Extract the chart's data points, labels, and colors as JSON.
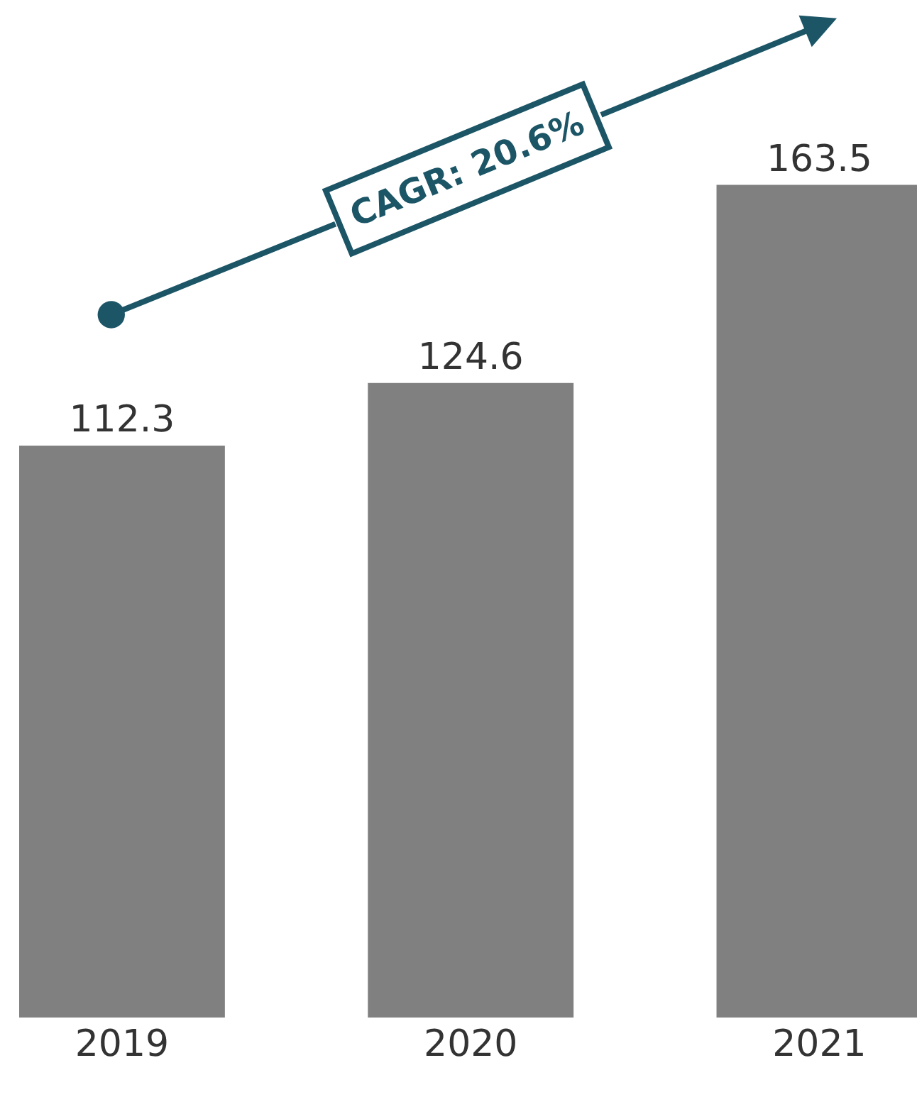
{
  "chart_data": {
    "type": "bar",
    "categories": [
      "2019",
      "2020",
      "2021"
    ],
    "values": [
      112.3,
      124.6,
      163.5
    ],
    "color": "#808080",
    "data_labels": true,
    "annotations": [
      "CAGR: 20.6%"
    ]
  }
}
